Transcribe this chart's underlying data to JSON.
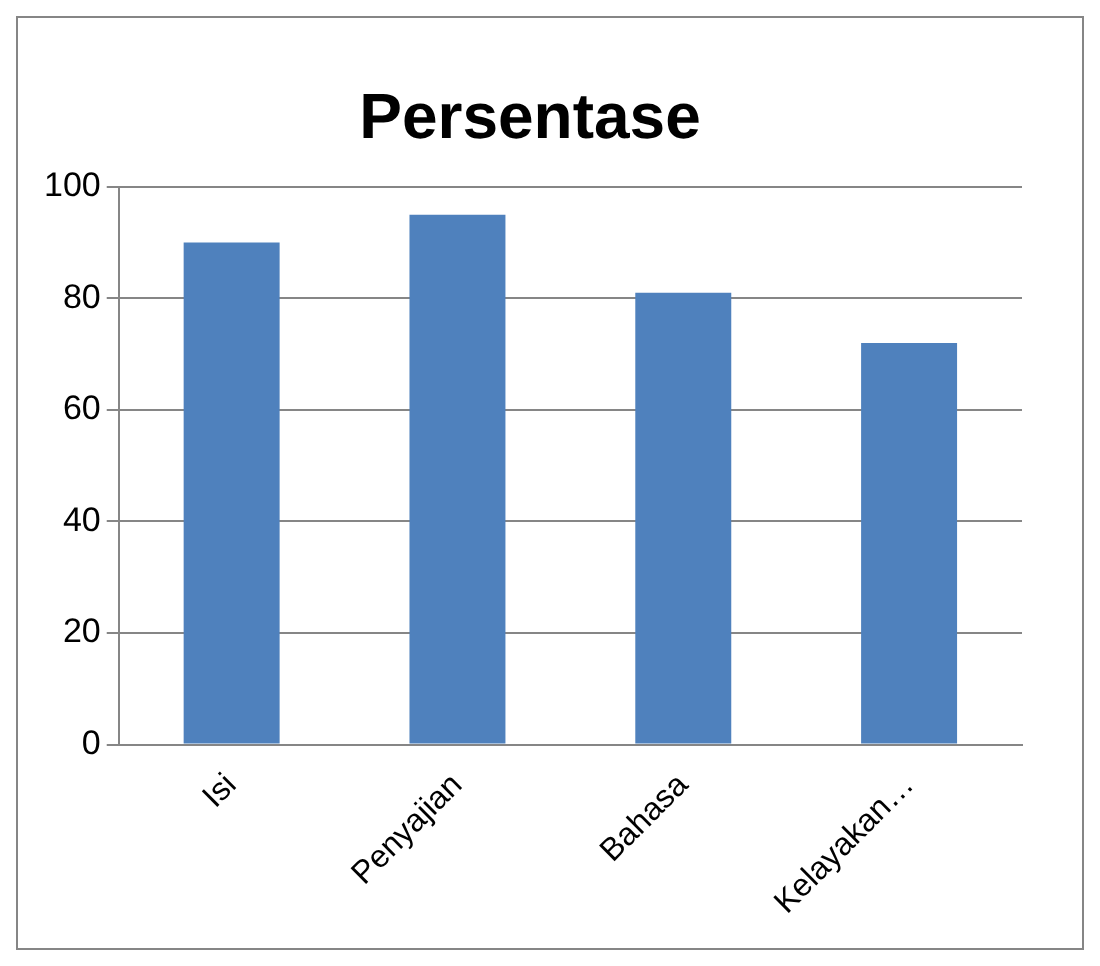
{
  "chart_data": {
    "type": "bar",
    "title": "Persentase",
    "categories": [
      "Isi",
      "Penyajian",
      "Bahasa",
      "Kelayakan…"
    ],
    "values": [
      90,
      95,
      81,
      72
    ],
    "color": "#4f81bd",
    "ylim": [
      0,
      100
    ],
    "yticks": [
      0,
      20,
      40,
      60,
      80,
      100
    ],
    "grid": "y",
    "legend": false
  }
}
